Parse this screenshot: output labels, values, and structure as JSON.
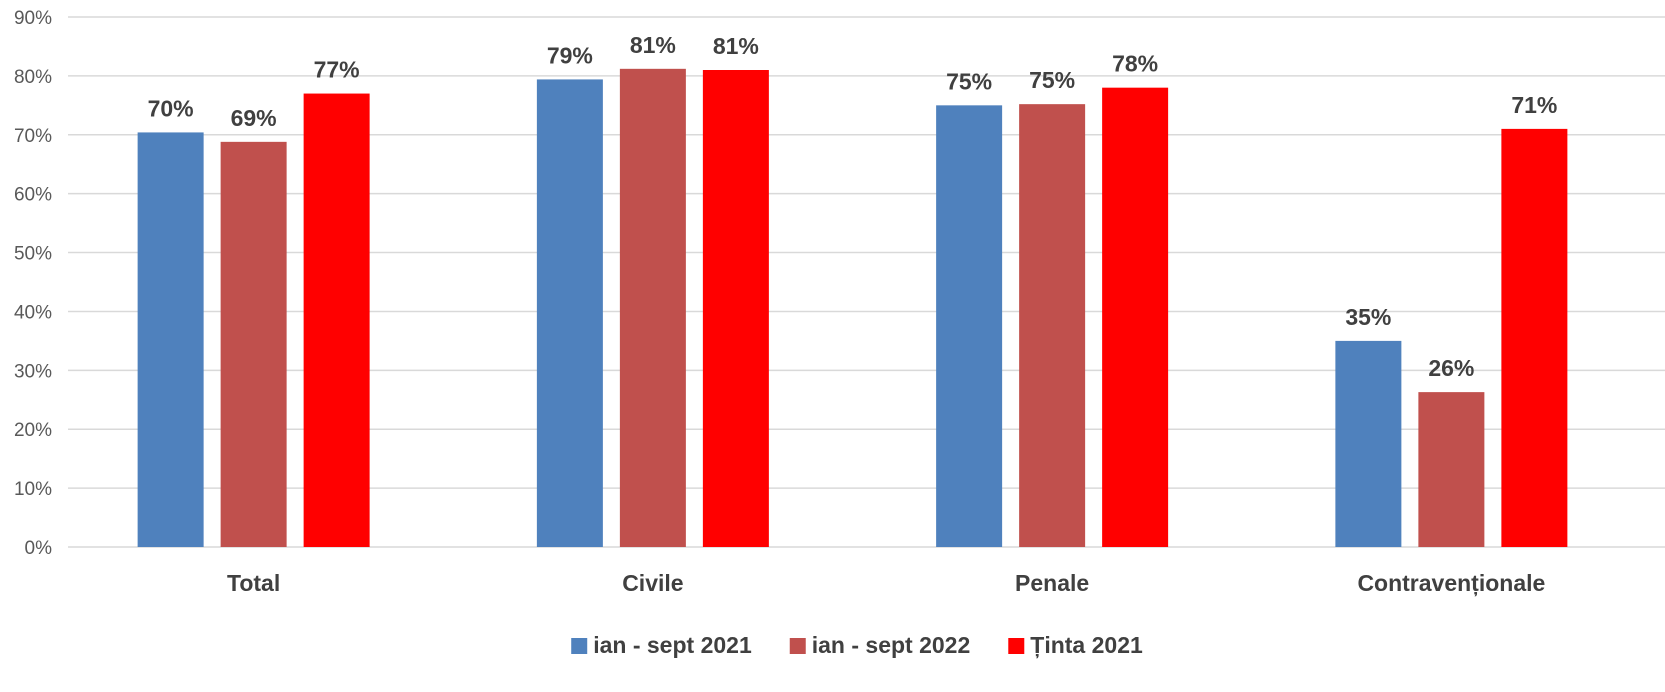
{
  "chart_data": {
    "type": "bar",
    "title": "",
    "xlabel": "",
    "ylabel": "",
    "ylim": [
      0,
      90
    ],
    "y_ticks": [
      "0%",
      "10%",
      "20%",
      "30%",
      "40%",
      "50%",
      "60%",
      "70%",
      "80%",
      "90%"
    ],
    "y_tick_values": [
      0,
      10,
      20,
      30,
      40,
      50,
      60,
      70,
      80,
      90
    ],
    "grid": true,
    "legend_position": "bottom",
    "categories": [
      "Total",
      "Civile",
      "Penale",
      "Contravenționale"
    ],
    "series": [
      {
        "name": "ian - sept 2021",
        "color": "#4f81bd",
        "values": [
          70.4,
          79.4,
          75.0,
          35.0
        ],
        "labels": [
          "70%",
          "79%",
          "75%",
          "35%"
        ]
      },
      {
        "name": "ian - sept 2022",
        "color": "#c0504d",
        "values": [
          68.8,
          81.2,
          75.2,
          26.3
        ],
        "labels": [
          "69%",
          "81%",
          "75%",
          "26%"
        ]
      },
      {
        "name": "Ținta 2021",
        "color": "#ff0000",
        "values": [
          77.0,
          81.0,
          78.0,
          71.0
        ],
        "labels": [
          "77%",
          "81%",
          "78%",
          "71%"
        ]
      }
    ]
  }
}
